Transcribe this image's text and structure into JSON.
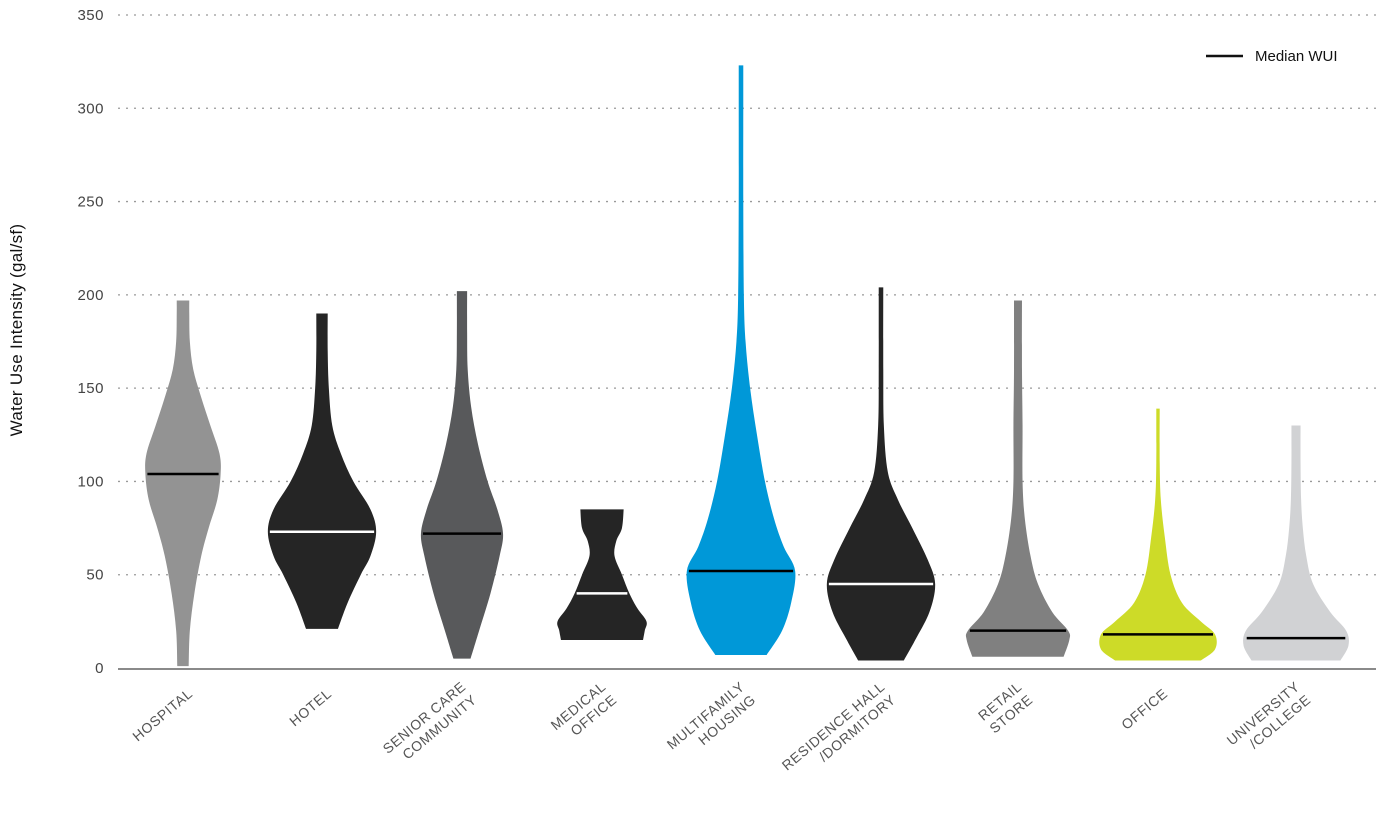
{
  "chart_data": {
    "type": "violin",
    "ylabel": "Water Use Intensity (gal/sf)",
    "ylim": [
      0,
      350
    ],
    "yticks": [
      "0",
      "50",
      "100",
      "150",
      "200",
      "250",
      "300",
      "350"
    ],
    "grid": true,
    "legend": {
      "label": "Median WUI",
      "placement": "top-right"
    },
    "categories": [
      {
        "label_lines": [
          "HOSPITAL"
        ],
        "color": "#939393",
        "median_color": "#000000",
        "median": 104,
        "min": 1,
        "max": 197,
        "profile": [
          [
            1,
            0.1
          ],
          [
            20,
            0.12
          ],
          [
            40,
            0.2
          ],
          [
            60,
            0.32
          ],
          [
            75,
            0.45
          ],
          [
            90,
            0.6
          ],
          [
            104,
            0.66
          ],
          [
            115,
            0.64
          ],
          [
            130,
            0.48
          ],
          [
            145,
            0.32
          ],
          [
            160,
            0.18
          ],
          [
            175,
            0.12
          ],
          [
            190,
            0.11
          ],
          [
            197,
            0.11
          ]
        ]
      },
      {
        "label_lines": [
          "HOTEL"
        ],
        "color": "#252525",
        "median_color": "#ffffff",
        "median": 73,
        "min": 21,
        "max": 190,
        "profile": [
          [
            21,
            0.28
          ],
          [
            35,
            0.45
          ],
          [
            50,
            0.68
          ],
          [
            60,
            0.85
          ],
          [
            73,
            0.95
          ],
          [
            85,
            0.85
          ],
          [
            100,
            0.55
          ],
          [
            115,
            0.33
          ],
          [
            130,
            0.18
          ],
          [
            150,
            0.12
          ],
          [
            170,
            0.1
          ],
          [
            190,
            0.1
          ]
        ]
      },
      {
        "label_lines": [
          "SENIOR CARE",
          "COMMUNITY"
        ],
        "color": "#58595b",
        "median_color": "#000000",
        "median": 72,
        "min": 5,
        "max": 202,
        "profile": [
          [
            5,
            0.15
          ],
          [
            20,
            0.3
          ],
          [
            40,
            0.5
          ],
          [
            60,
            0.66
          ],
          [
            72,
            0.72
          ],
          [
            85,
            0.62
          ],
          [
            100,
            0.45
          ],
          [
            120,
            0.28
          ],
          [
            140,
            0.16
          ],
          [
            160,
            0.1
          ],
          [
            180,
            0.09
          ],
          [
            202,
            0.09
          ]
        ]
      },
      {
        "label_lines": [
          "MEDICAL",
          "OFFICE"
        ],
        "color": "#252525",
        "median_color": "#ffffff",
        "median": 40,
        "min": 15,
        "max": 85,
        "profile": [
          [
            15,
            0.72
          ],
          [
            20,
            0.75
          ],
          [
            25,
            0.78
          ],
          [
            32,
            0.62
          ],
          [
            40,
            0.48
          ],
          [
            50,
            0.35
          ],
          [
            60,
            0.22
          ],
          [
            68,
            0.25
          ],
          [
            75,
            0.35
          ],
          [
            85,
            0.38
          ]
        ]
      },
      {
        "label_lines": [
          "MULTIFAMILY",
          "HOUSING"
        ],
        "color": "#0098d8",
        "median_color": "#000000",
        "median": 52,
        "min": 7,
        "max": 323,
        "profile": [
          [
            7,
            0.45
          ],
          [
            20,
            0.72
          ],
          [
            35,
            0.88
          ],
          [
            52,
            0.95
          ],
          [
            65,
            0.75
          ],
          [
            80,
            0.58
          ],
          [
            100,
            0.42
          ],
          [
            125,
            0.28
          ],
          [
            150,
            0.16
          ],
          [
            175,
            0.08
          ],
          [
            200,
            0.05
          ],
          [
            250,
            0.04
          ],
          [
            300,
            0.04
          ],
          [
            323,
            0.04
          ]
        ]
      },
      {
        "label_lines": [
          "RESIDENCE HALL",
          "/DORMITORY"
        ],
        "color": "#252525",
        "median_color": "#ffffff",
        "median": 45,
        "min": 4,
        "max": 204,
        "profile": [
          [
            4,
            0.4
          ],
          [
            15,
            0.6
          ],
          [
            30,
            0.85
          ],
          [
            45,
            0.95
          ],
          [
            58,
            0.82
          ],
          [
            75,
            0.55
          ],
          [
            90,
            0.3
          ],
          [
            105,
            0.12
          ],
          [
            130,
            0.05
          ],
          [
            160,
            0.04
          ],
          [
            204,
            0.04
          ]
        ]
      },
      {
        "label_lines": [
          "RETAIL",
          "STORE"
        ],
        "color": "#808080",
        "median_color": "#000000",
        "median": 20,
        "min": 6,
        "max": 197,
        "profile": [
          [
            6,
            0.8
          ],
          [
            15,
            0.9
          ],
          [
            20,
            0.88
          ],
          [
            30,
            0.6
          ],
          [
            45,
            0.35
          ],
          [
            60,
            0.22
          ],
          [
            80,
            0.12
          ],
          [
            100,
            0.08
          ],
          [
            130,
            0.08
          ],
          [
            160,
            0.07
          ],
          [
            197,
            0.07
          ]
        ]
      },
      {
        "label_lines": [
          "OFFICE"
        ],
        "color": "#cddb28",
        "median_color": "#000000",
        "median": 18,
        "min": 4,
        "max": 139,
        "profile": [
          [
            4,
            0.75
          ],
          [
            10,
            1.0
          ],
          [
            18,
            1.0
          ],
          [
            25,
            0.75
          ],
          [
            35,
            0.42
          ],
          [
            50,
            0.22
          ],
          [
            70,
            0.12
          ],
          [
            90,
            0.05
          ],
          [
            110,
            0.03
          ],
          [
            139,
            0.03
          ]
        ]
      },
      {
        "label_lines": [
          "UNIVERSITY",
          "/COLLEGE"
        ],
        "color": "#d1d2d4",
        "median_color": "#000000",
        "median": 16,
        "min": 4,
        "max": 130,
        "profile": [
          [
            4,
            0.78
          ],
          [
            12,
            0.92
          ],
          [
            20,
            0.88
          ],
          [
            30,
            0.6
          ],
          [
            45,
            0.3
          ],
          [
            60,
            0.18
          ],
          [
            75,
            0.12
          ],
          [
            90,
            0.09
          ],
          [
            110,
            0.08
          ],
          [
            130,
            0.08
          ]
        ]
      }
    ]
  }
}
